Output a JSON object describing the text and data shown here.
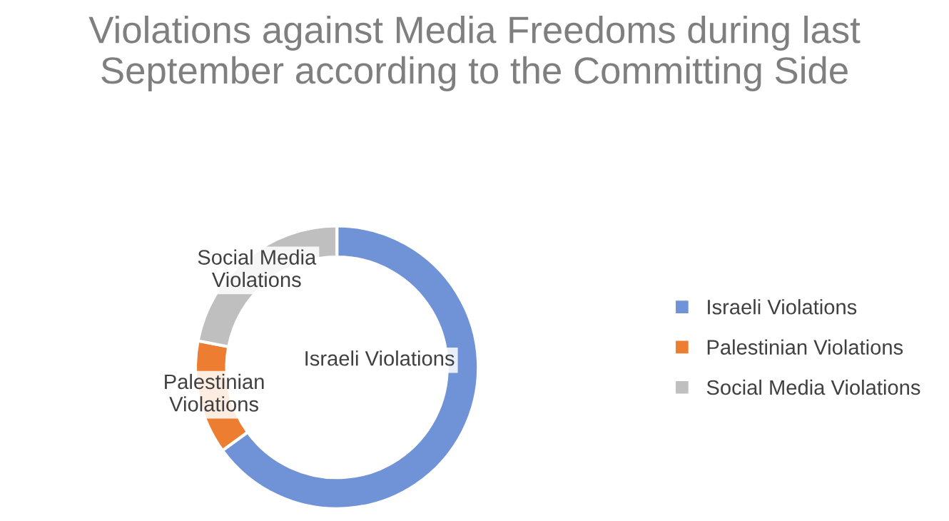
{
  "chart_data": {
    "type": "donut",
    "title": "Violations against Media Freedoms during last September according to the Committing Side",
    "categories": [
      "Israeli Violations",
      "Palestinian Violations",
      "Social Media Violations"
    ],
    "values": [
      65,
      13,
      22
    ],
    "colors": [
      "#6f93d6",
      "#ed7d31",
      "#bfbfbf"
    ],
    "legend": "right"
  }
}
